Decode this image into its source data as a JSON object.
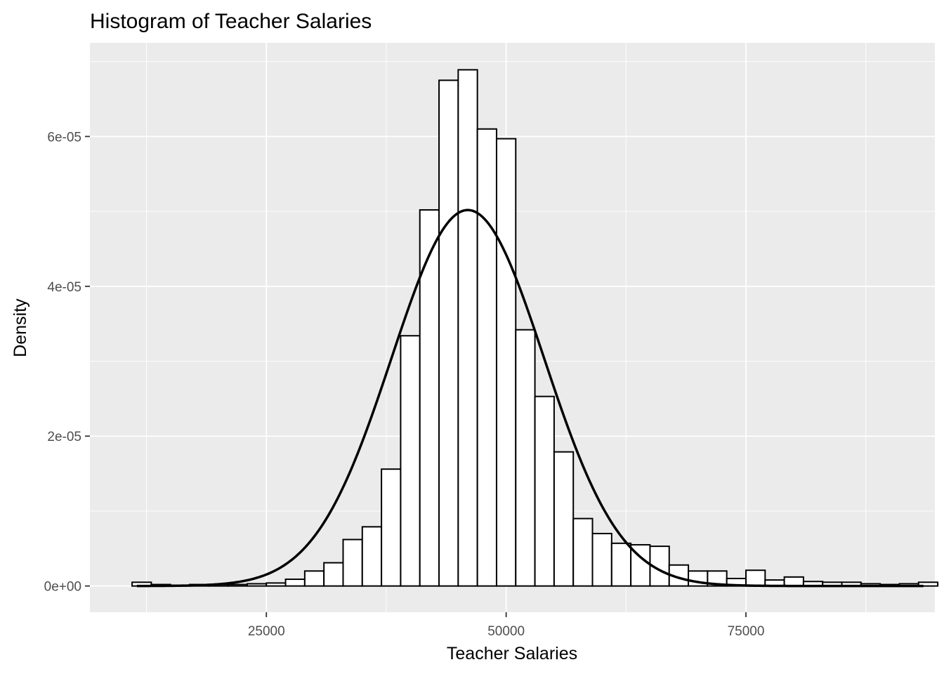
{
  "chart_data": {
    "type": "bar",
    "title": "Histogram of Teacher Salaries",
    "xlabel": "Teacher Salaries",
    "ylabel": "Density",
    "xlim": [
      6600,
      94700
    ],
    "ylim": [
      -3.5e-06,
      7.25e-05
    ],
    "x_ticks": [
      {
        "value": 25000,
        "label": "25000"
      },
      {
        "value": 50000,
        "label": "50000"
      },
      {
        "value": 75000,
        "label": "75000"
      }
    ],
    "y_ticks": [
      {
        "value": 0,
        "label": "0e+00"
      },
      {
        "value": 2e-05,
        "label": "2e-05"
      },
      {
        "value": 4e-05,
        "label": "4e-05"
      },
      {
        "value": 6e-05,
        "label": "6e-05"
      }
    ],
    "bin_width": 2000,
    "bin_start": 11000,
    "values": [
      5e-07,
      2e-07,
      1e-07,
      2e-07,
      2e-07,
      2e-07,
      3e-07,
      4e-07,
      9e-07,
      2e-06,
      3.1e-06,
      6.2e-06,
      7.9e-06,
      1.56e-05,
      3.34e-05,
      5.02e-05,
      6.75e-05,
      6.89e-05,
      6.1e-05,
      5.97e-05,
      3.42e-05,
      2.53e-05,
      1.79e-05,
      9e-06,
      7e-06,
      5.7e-06,
      5.5e-06,
      5.3e-06,
      2.8e-06,
      2e-06,
      2e-06,
      1e-06,
      2.1e-06,
      8e-07,
      1.2e-06,
      6e-07,
      5e-07,
      5e-07,
      3e-07,
      2e-07,
      3e-07,
      5e-07
    ],
    "normal_curve": {
      "mean": 46000,
      "sd": 7950
    },
    "grid": true,
    "legend": "none"
  }
}
